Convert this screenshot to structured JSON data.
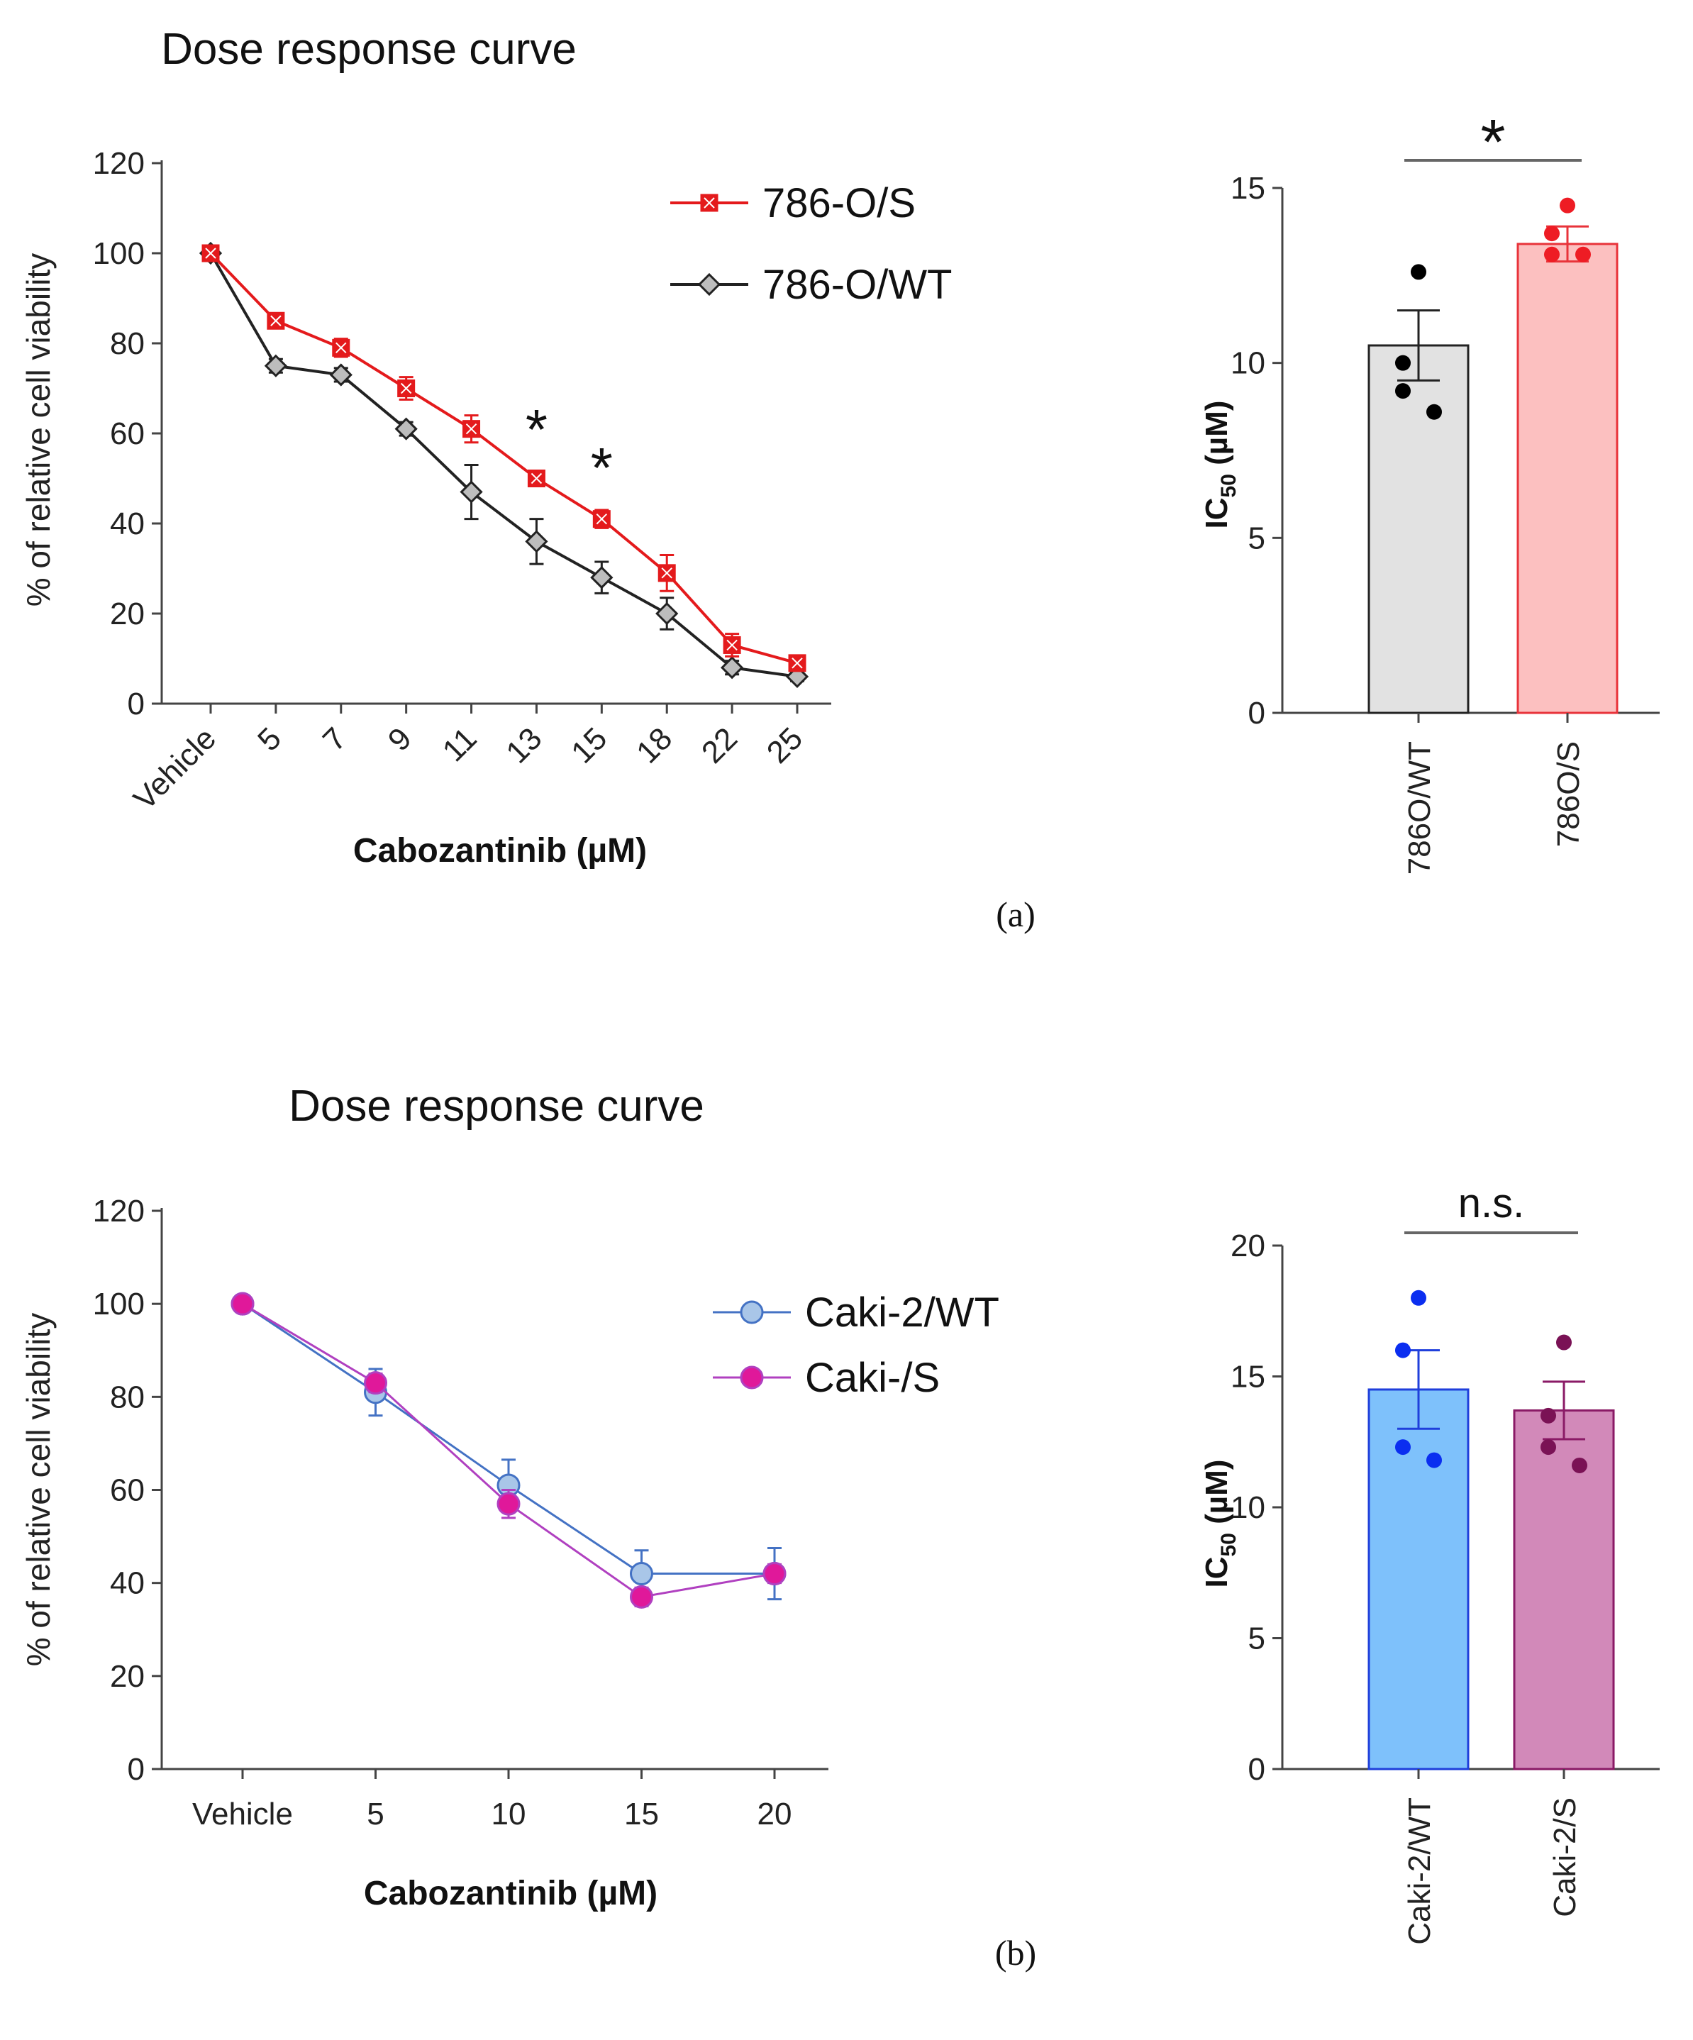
{
  "chart_data": [
    {
      "id": "a-line",
      "type": "line",
      "title": "Dose response curve",
      "xlabel": "Cabozantinib (µM)",
      "ylabel": "% of relative cell viability",
      "categories": [
        "Vehicle",
        "5",
        "7",
        "9",
        "11",
        "13",
        "15",
        "18",
        "22",
        "25"
      ],
      "yticks": [
        "0",
        "20",
        "40",
        "60",
        "80",
        "100",
        "120"
      ],
      "ylim": [
        0,
        120
      ],
      "series": [
        {
          "name": "786-O/S",
          "color": "#e41a1c",
          "marker": "square",
          "values": [
            100,
            85,
            79,
            70,
            61,
            50,
            41,
            29,
            13,
            9
          ],
          "errors": [
            1,
            1.5,
            2,
            2.5,
            3,
            1.5,
            2,
            4,
            2.5,
            1.5
          ]
        },
        {
          "name": "786-O/WT",
          "color": "#222222",
          "marker": "diamond",
          "values": [
            100,
            75,
            73,
            61,
            47,
            36,
            28,
            20,
            8,
            6
          ],
          "errors": [
            1,
            1.5,
            1.5,
            1.5,
            6,
            5,
            3.5,
            3.5,
            1.5,
            1
          ]
        }
      ],
      "annotations": [
        {
          "text": "*",
          "category": "13"
        },
        {
          "text": "*",
          "category": "15"
        }
      ],
      "legend_position": "top-right",
      "panel_label": "(a)"
    },
    {
      "id": "a-bar",
      "type": "bar",
      "ylabel_main": "IC",
      "ylabel_sub": "50",
      "ylabel_unit": " (µM)",
      "yticks": [
        "0",
        "5",
        "10",
        "15"
      ],
      "ylim": [
        0,
        15
      ],
      "categories": [
        "786O/WT",
        "786O/S"
      ],
      "values": [
        10.5,
        13.4
      ],
      "errors": [
        1.0,
        0.5
      ],
      "points": [
        [
          12.6,
          10.0,
          9.2,
          8.6
        ],
        [
          14.5,
          13.7,
          13.1,
          13.1
        ]
      ],
      "colors": {
        "fill": [
          "#e2e2e2",
          "#fcc0c0"
        ],
        "edge": [
          "#222222",
          "#e8333a"
        ],
        "point": [
          "#000000",
          "#ee1c24"
        ]
      },
      "significance": "*"
    },
    {
      "id": "b-line",
      "type": "line",
      "title": "Dose response curve",
      "xlabel": "Cabozantinib (µM)",
      "ylabel": "% of relative cell viability",
      "categories": [
        "Vehicle",
        "5",
        "10",
        "15",
        "20"
      ],
      "yticks": [
        "0",
        "20",
        "40",
        "60",
        "80",
        "100",
        "120"
      ],
      "ylim": [
        0,
        120
      ],
      "series": [
        {
          "name": "Caki-2/WT",
          "color": "#4472c4",
          "fill": "#a9c6e8",
          "marker": "circle",
          "values": [
            100,
            81,
            61,
            42,
            42
          ],
          "errors": [
            1,
            5,
            5.5,
            5,
            5.5
          ]
        },
        {
          "name": "Caki-/S",
          "color": "#b040c0",
          "fill": "#e0189a",
          "marker": "circle",
          "values": [
            100,
            83,
            57,
            37,
            42
          ],
          "errors": [
            1,
            2,
            3,
            2,
            2
          ]
        }
      ],
      "legend_position": "right",
      "panel_label": "(b)"
    },
    {
      "id": "b-bar",
      "type": "bar",
      "ylabel_main": "IC",
      "ylabel_sub": "50",
      "ylabel_unit": " (µM)",
      "yticks": [
        "0",
        "5",
        "10",
        "15",
        "20"
      ],
      "ylim": [
        0,
        20
      ],
      "categories": [
        "Caki-2/WT",
        "Caki-2/S"
      ],
      "values": [
        14.5,
        13.7
      ],
      "errors": [
        1.5,
        1.1
      ],
      "points": [
        [
          18.0,
          16.0,
          12.3,
          11.8
        ],
        [
          16.3,
          13.5,
          12.3,
          11.6
        ]
      ],
      "colors": {
        "fill": [
          "#7ec1fb",
          "#d289b9"
        ],
        "edge": [
          "#1f3fdb",
          "#8a1a66"
        ],
        "point": [
          "#0b2ef0",
          "#7a1255"
        ]
      },
      "significance": "n.s."
    }
  ]
}
